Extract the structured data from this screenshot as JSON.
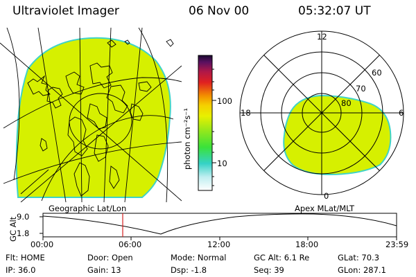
{
  "header": {
    "title": "Ultraviolet Imager",
    "date": "06 Nov 00",
    "time": "05:32:07 UT"
  },
  "colorbar": {
    "label": "photon cm⁻²s⁻¹",
    "ticks": [
      "100",
      "10"
    ]
  },
  "left_panel": {
    "caption": "Geographic Lat/Lon"
  },
  "right_panel": {
    "caption": "Apex MLat/MLT",
    "lat_labels": [
      "60",
      "70",
      "80"
    ],
    "mlt_labels": [
      "12",
      "18",
      "6",
      "0"
    ]
  },
  "altitude_plot": {
    "ylabel": "GC Alt",
    "y_ticks": [
      "9.0",
      "1.8"
    ],
    "x_ticks": [
      "00:00",
      "06:00",
      "12:00",
      "18:00",
      "23:59"
    ]
  },
  "status": {
    "row1": [
      "Flt: HOME",
      "Door: Open",
      "Mode: Normal",
      "GC Alt: 6.1 Re",
      "GLat:  70.3"
    ],
    "row2": [
      "IP: 36.0",
      "Gain: 13",
      "Dsp:   -1.8",
      "Seq: 39",
      "GLon: 287.1"
    ]
  },
  "colors": {
    "image_fill": "#d6f000",
    "image_edge": "#3fd3c8",
    "marker": "#d42020"
  }
}
